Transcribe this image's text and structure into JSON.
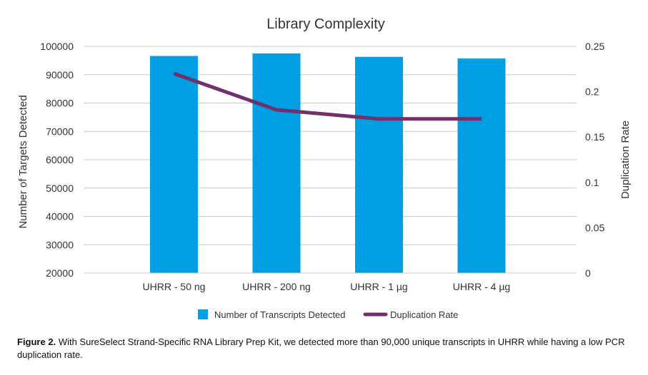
{
  "chart_data": {
    "type": "bar",
    "title": "Library Complexity",
    "categories": [
      "UHRR - 50 ng",
      "UHRR - 200 ng",
      "UHRR - 1 µg",
      "UHRR - 4 µg"
    ],
    "series": [
      {
        "name": "Number of Transcripts Detected",
        "type": "bar",
        "axis": "left",
        "color": "#009fe3",
        "values": [
          96600,
          97500,
          96300,
          95700
        ]
      },
      {
        "name": "Duplication Rate",
        "type": "line",
        "axis": "right",
        "color": "#722f6a",
        "values": [
          0.22,
          0.18,
          0.17,
          0.17
        ]
      }
    ],
    "ylabel": "Number of Targets Detected",
    "y2label": "Duplication Rate",
    "ylim": [
      20000,
      100000
    ],
    "y2lim": [
      0,
      0.25
    ],
    "yticks": [
      "20000",
      "30000",
      "40000",
      "50000",
      "60000",
      "70000",
      "80000",
      "90000",
      "100000"
    ],
    "y2ticks": [
      "0",
      "0.05",
      "0.1",
      "0.15",
      "0.2",
      "0.25"
    ],
    "grid": true,
    "legend_position": "bottom"
  },
  "caption": {
    "label": "Figure 2.",
    "text": "With SureSelect Strand-Specific RNA Library Prep Kit, we detected more than 90,000 unique transcripts in UHRR while having a low PCR duplication rate."
  }
}
